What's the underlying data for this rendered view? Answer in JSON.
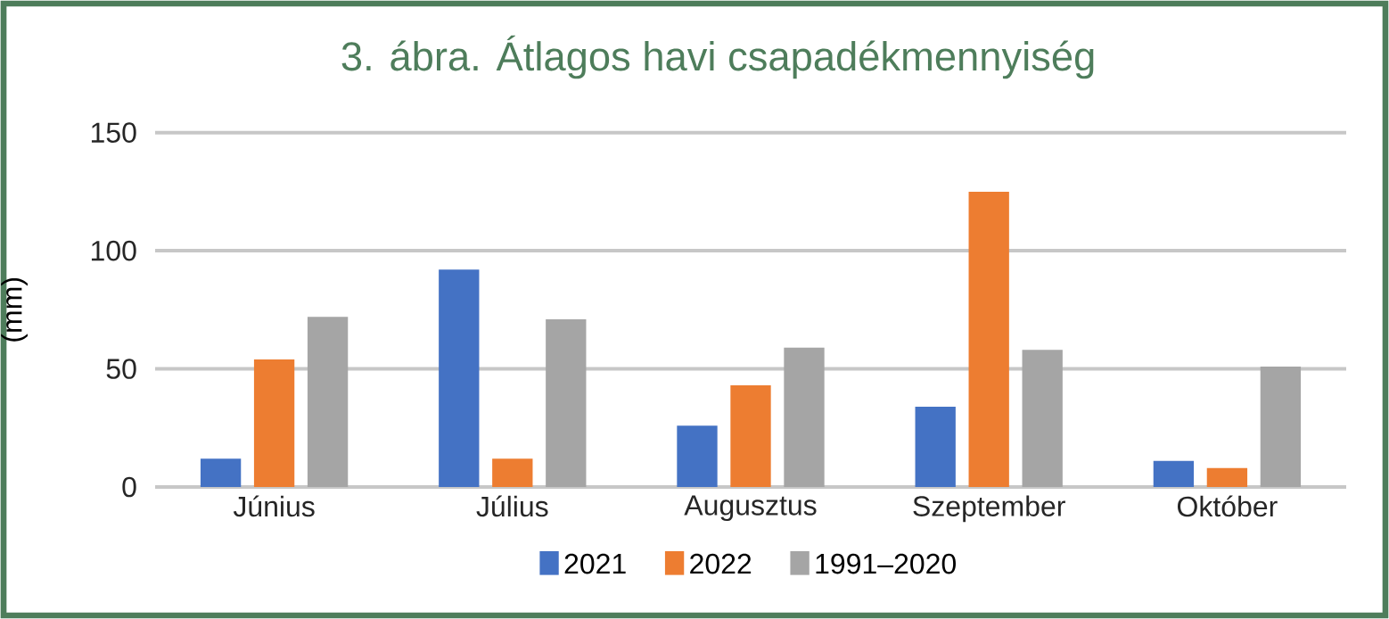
{
  "chart_data": {
    "type": "bar",
    "title": "3. ábra. Átlagos havi csapadékmennyiség",
    "ylabel": "(mm)",
    "categories": [
      "Június",
      "Július",
      "Augusztus",
      "Szeptember",
      "Október"
    ],
    "series": [
      {
        "name": "2021",
        "color": "#4472c4",
        "values": [
          12,
          92,
          26,
          34,
          11
        ]
      },
      {
        "name": "2022",
        "color": "#ed7d31",
        "values": [
          54,
          12,
          43,
          125,
          8
        ]
      },
      {
        "name": "1991–2020",
        "color": "#a5a5a5",
        "values": [
          72,
          71,
          59,
          58,
          51
        ]
      }
    ],
    "ylim": [
      0,
      150
    ],
    "yticks": [
      0,
      50,
      100,
      150
    ],
    "grid": "y",
    "legend": "bottom"
  }
}
